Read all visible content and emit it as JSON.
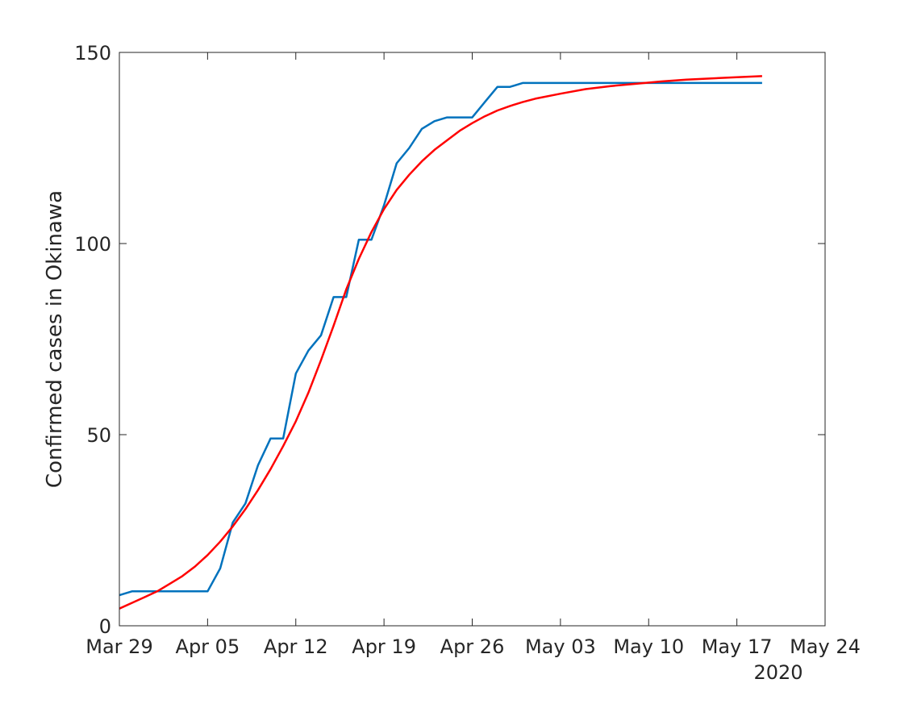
{
  "chart_data": {
    "type": "line",
    "ylabel": "Confirmed cases in Okinawa",
    "year_label": "2020",
    "xlim": [
      "2020-03-29",
      "2020-05-24"
    ],
    "ylim": [
      0,
      150
    ],
    "grid": false,
    "x_ticks": [
      {
        "date": "2020-03-29",
        "label": "Mar 29"
      },
      {
        "date": "2020-04-05",
        "label": "Apr 05"
      },
      {
        "date": "2020-04-12",
        "label": "Apr 12"
      },
      {
        "date": "2020-04-19",
        "label": "Apr 19"
      },
      {
        "date": "2020-04-26",
        "label": "Apr 26"
      },
      {
        "date": "2020-05-03",
        "label": "May 03"
      },
      {
        "date": "2020-05-10",
        "label": "May 10"
      },
      {
        "date": "2020-05-17",
        "label": "May 17"
      },
      {
        "date": "2020-05-24",
        "label": "May 24"
      }
    ],
    "y_ticks": [
      {
        "value": 0,
        "label": "0"
      },
      {
        "value": 50,
        "label": "50"
      },
      {
        "value": 100,
        "label": "100"
      },
      {
        "value": 150,
        "label": "150"
      }
    ],
    "series": [
      {
        "color": "#0072BD",
        "x": [
          "2020-03-29",
          "2020-03-30",
          "2020-03-31",
          "2020-04-01",
          "2020-04-02",
          "2020-04-03",
          "2020-04-04",
          "2020-04-05",
          "2020-04-06",
          "2020-04-07",
          "2020-04-08",
          "2020-04-09",
          "2020-04-10",
          "2020-04-11",
          "2020-04-12",
          "2020-04-13",
          "2020-04-14",
          "2020-04-15",
          "2020-04-16",
          "2020-04-17",
          "2020-04-18",
          "2020-04-19",
          "2020-04-20",
          "2020-04-21",
          "2020-04-22",
          "2020-04-23",
          "2020-04-24",
          "2020-04-25",
          "2020-04-26",
          "2020-04-27",
          "2020-04-28",
          "2020-04-29",
          "2020-04-30",
          "2020-05-01",
          "2020-05-05",
          "2020-05-10",
          "2020-05-15",
          "2020-05-19"
        ],
        "y": [
          8,
          9,
          9,
          9,
          9,
          9,
          9,
          9,
          15,
          27,
          32,
          42,
          49,
          49,
          66,
          72,
          76,
          86,
          86,
          101,
          101,
          110,
          121,
          125,
          130,
          132,
          133,
          133,
          133,
          137,
          141,
          141,
          142,
          142,
          142,
          142,
          142,
          142
        ]
      },
      {
        "color": "#FF0000",
        "x": [
          "2020-03-29",
          "2020-03-30",
          "2020-03-31",
          "2020-04-01",
          "2020-04-02",
          "2020-04-03",
          "2020-04-04",
          "2020-04-05",
          "2020-04-06",
          "2020-04-07",
          "2020-04-08",
          "2020-04-09",
          "2020-04-10",
          "2020-04-11",
          "2020-04-12",
          "2020-04-13",
          "2020-04-14",
          "2020-04-15",
          "2020-04-16",
          "2020-04-17",
          "2020-04-18",
          "2020-04-19",
          "2020-04-20",
          "2020-04-21",
          "2020-04-22",
          "2020-04-23",
          "2020-04-24",
          "2020-04-25",
          "2020-04-26",
          "2020-04-27",
          "2020-04-28",
          "2020-04-29",
          "2020-04-30",
          "2020-05-01",
          "2020-05-03",
          "2020-05-05",
          "2020-05-07",
          "2020-05-09",
          "2020-05-11",
          "2020-05-13",
          "2020-05-15",
          "2020-05-17",
          "2020-05-19"
        ],
        "y": [
          4.5,
          6,
          7.5,
          9,
          11,
          13,
          15.5,
          18.5,
          22,
          26,
          30.5,
          35.5,
          41,
          47,
          53.5,
          61,
          69.5,
          78.5,
          88,
          96,
          103,
          109,
          114,
          118,
          121.5,
          124.5,
          127,
          129.5,
          131.5,
          133.3,
          134.8,
          136,
          137,
          137.9,
          139.2,
          140.4,
          141.2,
          141.8,
          142.4,
          142.9,
          143.2,
          143.5,
          143.8
        ]
      }
    ]
  }
}
